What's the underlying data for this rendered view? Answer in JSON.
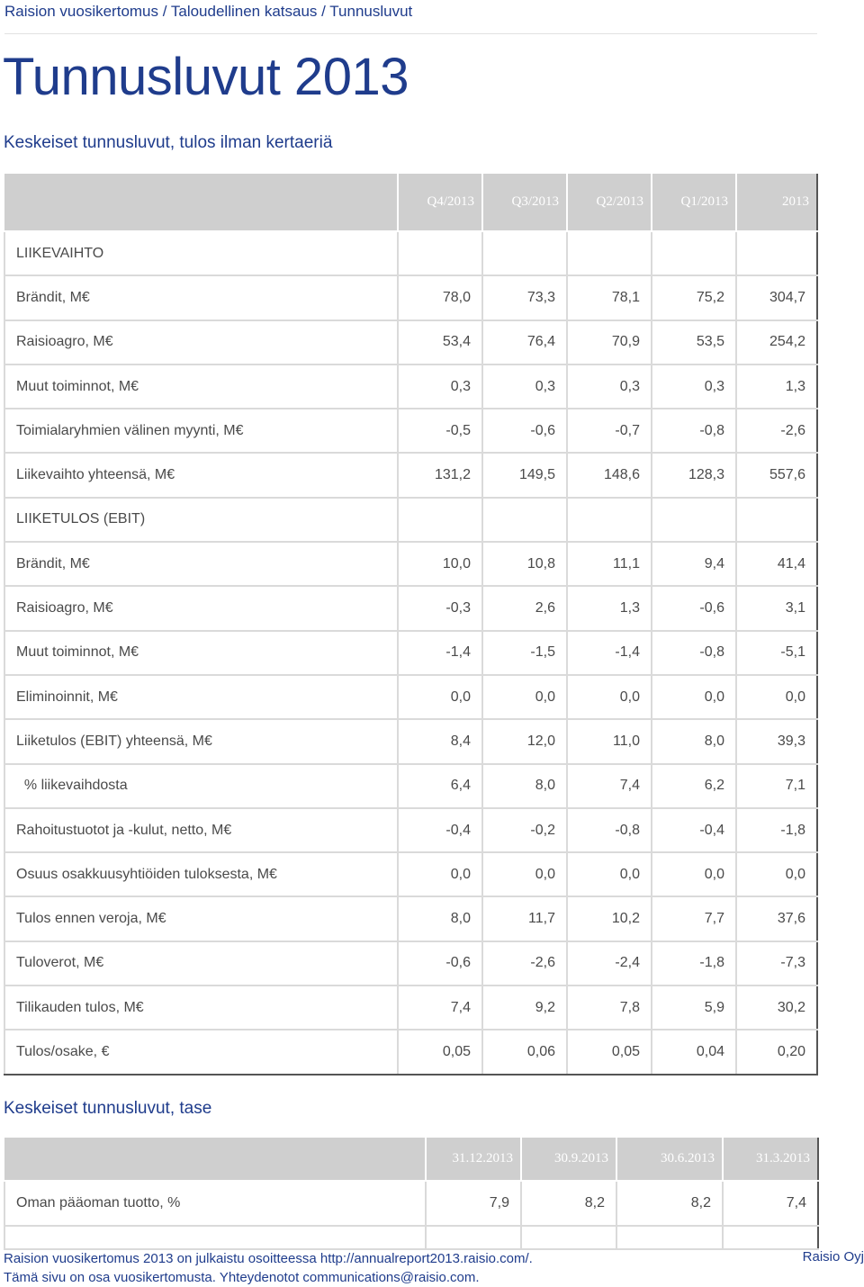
{
  "breadcrumb": "Raision vuosikertomus / Taloudellinen katsaus / Tunnusluvut",
  "page_title": "Tunnusluvut 2013",
  "section1": {
    "title": "Keskeiset tunnusluvut, tulos ilman kertaeriä",
    "columns": [
      "Q4/2013",
      "Q3/2013",
      "Q2/2013",
      "Q1/2013",
      "2013"
    ],
    "rows": [
      {
        "label": "LIIKEVAIHTO",
        "values": [
          "",
          "",
          "",
          "",
          ""
        ]
      },
      {
        "label": "Brändit, M€",
        "values": [
          "78,0",
          "73,3",
          "78,1",
          "75,2",
          "304,7"
        ]
      },
      {
        "label": "Raisioagro, M€",
        "values": [
          "53,4",
          "76,4",
          "70,9",
          "53,5",
          "254,2"
        ]
      },
      {
        "label": "Muut toiminnot, M€",
        "values": [
          "0,3",
          "0,3",
          "0,3",
          "0,3",
          "1,3"
        ]
      },
      {
        "label": "Toimialaryhmien välinen myynti, M€",
        "values": [
          "-0,5",
          "-0,6",
          "-0,7",
          "-0,8",
          "-2,6"
        ]
      },
      {
        "label": "Liikevaihto yhteensä, M€",
        "values": [
          "131,2",
          "149,5",
          "148,6",
          "128,3",
          "557,6"
        ]
      },
      {
        "label": "LIIKETULOS (EBIT)",
        "values": [
          "",
          "",
          "",
          "",
          ""
        ]
      },
      {
        "label": "Brändit, M€",
        "values": [
          "10,0",
          "10,8",
          "11,1",
          "9,4",
          "41,4"
        ]
      },
      {
        "label": "Raisioagro, M€",
        "values": [
          "-0,3",
          "2,6",
          "1,3",
          "-0,6",
          "3,1"
        ]
      },
      {
        "label": "Muut toiminnot, M€",
        "values": [
          "-1,4",
          "-1,5",
          "-1,4",
          "-0,8",
          "-5,1"
        ]
      },
      {
        "label": "Eliminoinnit, M€",
        "values": [
          "0,0",
          "0,0",
          "0,0",
          "0,0",
          "0,0"
        ]
      },
      {
        "label": "Liiketulos (EBIT) yhteensä, M€",
        "values": [
          "8,4",
          "12,0",
          "11,0",
          "8,0",
          "39,3"
        ]
      },
      {
        "label": "  % liikevaihdosta",
        "values": [
          "6,4",
          "8,0",
          "7,4",
          "6,2",
          "7,1"
        ]
      },
      {
        "label": "Rahoitustuotot ja -kulut, netto, M€",
        "values": [
          "-0,4",
          "-0,2",
          "-0,8",
          "-0,4",
          "-1,8"
        ]
      },
      {
        "label": "Osuus osakkuusyhtiöiden tuloksesta, M€",
        "values": [
          "0,0",
          "0,0",
          "0,0",
          "0,0",
          "0,0"
        ]
      },
      {
        "label": "Tulos ennen veroja, M€",
        "values": [
          "8,0",
          "11,7",
          "10,2",
          "7,7",
          "37,6"
        ]
      },
      {
        "label": "Tuloverot, M€",
        "values": [
          "-0,6",
          "-2,6",
          "-2,4",
          "-1,8",
          "-7,3"
        ]
      },
      {
        "label": "Tilikauden tulos, M€",
        "values": [
          "7,4",
          "9,2",
          "7,8",
          "5,9",
          "30,2"
        ]
      },
      {
        "label": "Tulos/osake, €",
        "values": [
          "0,05",
          "0,06",
          "0,05",
          "0,04",
          "0,20"
        ]
      }
    ]
  },
  "section2": {
    "title": "Keskeiset tunnusluvut, tase",
    "columns": [
      "31.12.2013",
      "30.9.2013",
      "30.6.2013",
      "31.3.2013"
    ],
    "rows": [
      {
        "label": "Oman pääoman tuotto, %",
        "values": [
          "7,9",
          "8,2",
          "8,2",
          "7,4"
        ]
      },
      {
        "label": "",
        "values": [
          "",
          "",
          "",
          ""
        ]
      }
    ]
  },
  "footer": {
    "line1": "Raision vuosikertomus 2013 on julkaistu osoitteessa http://annualreport2013.raisio.com/.",
    "line2": "Tämä sivu on osa vuosikertomusta. Yhteydenotot communications@raisio.com.",
    "company": "Raisio Oyj"
  }
}
